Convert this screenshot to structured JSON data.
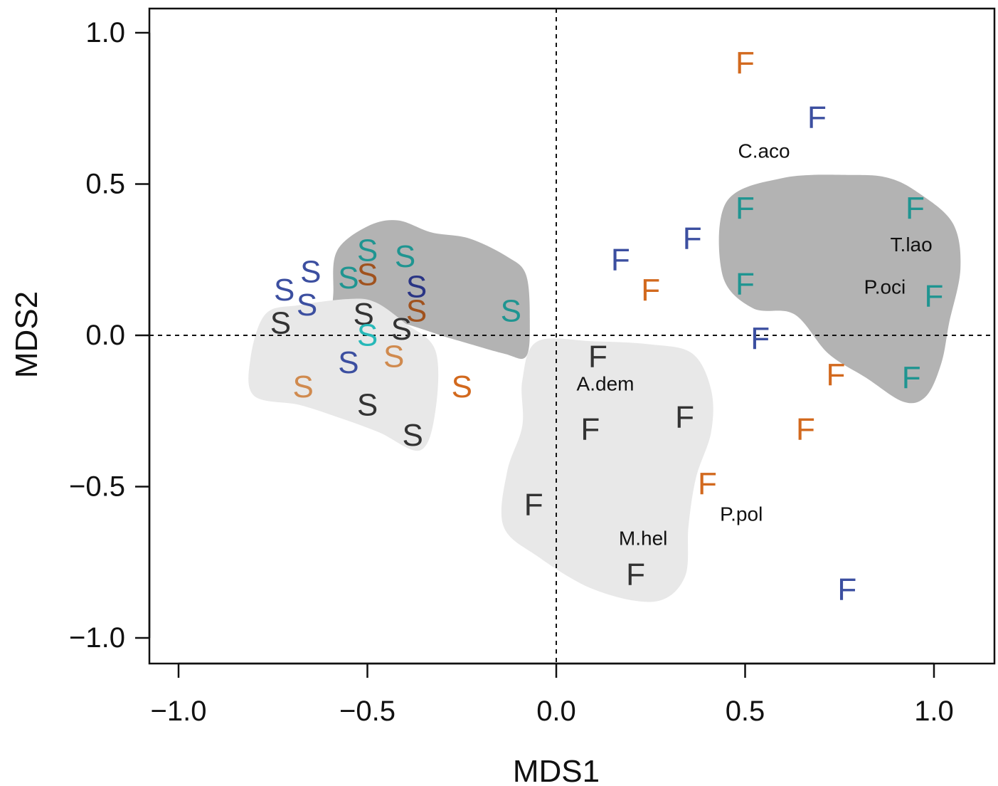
{
  "chart_data": {
    "type": "scatter",
    "xlabel": "MDS1",
    "ylabel": "MDS2",
    "xlim": [
      -1.05,
      1.16
    ],
    "ylim": [
      -1.08,
      1.08
    ],
    "xticks": [
      -1.0,
      -0.5,
      0.0,
      0.5,
      1.0
    ],
    "yticks": [
      -1.0,
      -0.5,
      0.0,
      0.5,
      1.0
    ],
    "xtick_labels": [
      "−1.0",
      "−0.5",
      "0.0",
      "0.5",
      "1.0"
    ],
    "ytick_labels": [
      "−1.0",
      "−0.5",
      "0.0",
      "0.5",
      "1.0"
    ],
    "reference_lines": {
      "x": 0.0,
      "y": 0.0,
      "style": "dashed"
    },
    "grid": false,
    "colors": {
      "orange": "#d2691e",
      "blue": "#3c4fa0",
      "teal": "#1f9591",
      "black": "#333333",
      "light_orange": "#d08a4e",
      "brown": "#a0521e",
      "navy": "#2a3585",
      "cyan": "#27b8b8",
      "hull_dark": "#b3b3b3",
      "hull_light": "#e8e8e8",
      "axis": "#111111"
    },
    "hulls": [
      {
        "group": "S dark",
        "shade": "dark",
        "points": [
          [
            -0.58,
            0.28
          ],
          [
            -0.5,
            0.36
          ],
          [
            -0.42,
            0.38
          ],
          [
            -0.33,
            0.34
          ],
          [
            -0.23,
            0.32
          ],
          [
            -0.13,
            0.26
          ],
          [
            -0.08,
            0.2
          ],
          [
            -0.07,
            0.05
          ],
          [
            -0.08,
            -0.07
          ],
          [
            -0.14,
            -0.06
          ],
          [
            -0.28,
            -0.01
          ],
          [
            -0.45,
            0.05
          ],
          [
            -0.58,
            0.02
          ],
          [
            -0.59,
            0.15
          ]
        ]
      },
      {
        "group": "S light",
        "shade": "light",
        "points": [
          [
            -0.77,
            0.07
          ],
          [
            -0.68,
            0.1
          ],
          [
            -0.55,
            0.12
          ],
          [
            -0.48,
            0.11
          ],
          [
            -0.4,
            0.04
          ],
          [
            -0.32,
            -0.05
          ],
          [
            -0.32,
            -0.25
          ],
          [
            -0.36,
            -0.38
          ],
          [
            -0.47,
            -0.32
          ],
          [
            -0.58,
            -0.27
          ],
          [
            -0.68,
            -0.23
          ],
          [
            -0.8,
            -0.2
          ],
          [
            -0.81,
            -0.08
          ]
        ]
      },
      {
        "group": "F light",
        "shade": "light",
        "points": [
          [
            -0.05,
            -0.02
          ],
          [
            0.1,
            -0.02
          ],
          [
            0.25,
            -0.03
          ],
          [
            0.36,
            -0.06
          ],
          [
            0.41,
            -0.18
          ],
          [
            0.41,
            -0.32
          ],
          [
            0.37,
            -0.47
          ],
          [
            0.35,
            -0.63
          ],
          [
            0.34,
            -0.8
          ],
          [
            0.26,
            -0.88
          ],
          [
            0.1,
            -0.84
          ],
          [
            -0.05,
            -0.73
          ],
          [
            -0.14,
            -0.63
          ],
          [
            -0.13,
            -0.45
          ],
          [
            -0.09,
            -0.3
          ],
          [
            -0.09,
            -0.15
          ]
        ]
      },
      {
        "group": "F dark",
        "shade": "dark",
        "points": [
          [
            0.45,
            0.44
          ],
          [
            0.6,
            0.52
          ],
          [
            0.78,
            0.53
          ],
          [
            0.88,
            0.52
          ],
          [
            0.96,
            0.47
          ],
          [
            1.05,
            0.37
          ],
          [
            1.07,
            0.22
          ],
          [
            1.04,
            0.04
          ],
          [
            1.02,
            -0.09
          ],
          [
            0.98,
            -0.2
          ],
          [
            0.92,
            -0.22
          ],
          [
            0.82,
            -0.14
          ],
          [
            0.72,
            -0.06
          ],
          [
            0.63,
            0.07
          ],
          [
            0.52,
            0.09
          ],
          [
            0.44,
            0.2
          ]
        ]
      }
    ],
    "series": [
      {
        "name": "S",
        "points": [
          {
            "x": -0.72,
            "y": 0.15,
            "color": "blue"
          },
          {
            "x": -0.65,
            "y": 0.21,
            "color": "blue"
          },
          {
            "x": -0.66,
            "y": 0.1,
            "color": "blue"
          },
          {
            "x": -0.73,
            "y": 0.04,
            "color": "black"
          },
          {
            "x": -0.55,
            "y": 0.19,
            "color": "teal"
          },
          {
            "x": -0.5,
            "y": 0.28,
            "color": "teal"
          },
          {
            "x": -0.5,
            "y": 0.2,
            "color": "brown"
          },
          {
            "x": -0.4,
            "y": 0.26,
            "color": "teal"
          },
          {
            "x": -0.37,
            "y": 0.16,
            "color": "navy"
          },
          {
            "x": -0.37,
            "y": 0.08,
            "color": "brown"
          },
          {
            "x": -0.51,
            "y": 0.07,
            "color": "black"
          },
          {
            "x": -0.5,
            "y": 0.0,
            "color": "cyan"
          },
          {
            "x": -0.41,
            "y": 0.02,
            "color": "black"
          },
          {
            "x": -0.12,
            "y": 0.08,
            "color": "teal"
          },
          {
            "x": -0.55,
            "y": -0.09,
            "color": "blue"
          },
          {
            "x": -0.43,
            "y": -0.07,
            "color": "light_orange"
          },
          {
            "x": -0.67,
            "y": -0.17,
            "color": "light_orange"
          },
          {
            "x": -0.25,
            "y": -0.17,
            "color": "orange"
          },
          {
            "x": -0.5,
            "y": -0.23,
            "color": "black"
          },
          {
            "x": -0.38,
            "y": -0.33,
            "color": "black"
          }
        ]
      },
      {
        "name": "F",
        "points": [
          {
            "x": 0.5,
            "y": 0.9,
            "color": "orange"
          },
          {
            "x": 0.69,
            "y": 0.72,
            "color": "blue"
          },
          {
            "x": 0.5,
            "y": 0.42,
            "color": "teal"
          },
          {
            "x": 0.95,
            "y": 0.42,
            "color": "teal"
          },
          {
            "x": 0.36,
            "y": 0.32,
            "color": "blue"
          },
          {
            "x": 0.17,
            "y": 0.25,
            "color": "blue"
          },
          {
            "x": 0.5,
            "y": 0.17,
            "color": "teal"
          },
          {
            "x": 0.25,
            "y": 0.15,
            "color": "orange"
          },
          {
            "x": 1.0,
            "y": 0.13,
            "color": "teal"
          },
          {
            "x": 0.54,
            "y": -0.01,
            "color": "blue"
          },
          {
            "x": 0.11,
            "y": -0.07,
            "color": "black"
          },
          {
            "x": 0.74,
            "y": -0.13,
            "color": "orange"
          },
          {
            "x": 0.94,
            "y": -0.14,
            "color": "teal"
          },
          {
            "x": 0.34,
            "y": -0.27,
            "color": "black"
          },
          {
            "x": 0.09,
            "y": -0.31,
            "color": "black"
          },
          {
            "x": 0.66,
            "y": -0.31,
            "color": "orange"
          },
          {
            "x": 0.4,
            "y": -0.49,
            "color": "orange"
          },
          {
            "x": -0.06,
            "y": -0.56,
            "color": "black"
          },
          {
            "x": 0.21,
            "y": -0.79,
            "color": "black"
          },
          {
            "x": 0.77,
            "y": -0.84,
            "color": "blue"
          }
        ]
      }
    ],
    "annotations": [
      {
        "text": "C.aco",
        "x": 0.55,
        "y": 0.61
      },
      {
        "text": "T.lao",
        "x": 0.94,
        "y": 0.3
      },
      {
        "text": "P.oci",
        "x": 0.87,
        "y": 0.16
      },
      {
        "text": "A.dem",
        "x": 0.13,
        "y": -0.16
      },
      {
        "text": "P.pol",
        "x": 0.49,
        "y": -0.59
      },
      {
        "text": "M.hel",
        "x": 0.23,
        "y": -0.67
      }
    ]
  }
}
